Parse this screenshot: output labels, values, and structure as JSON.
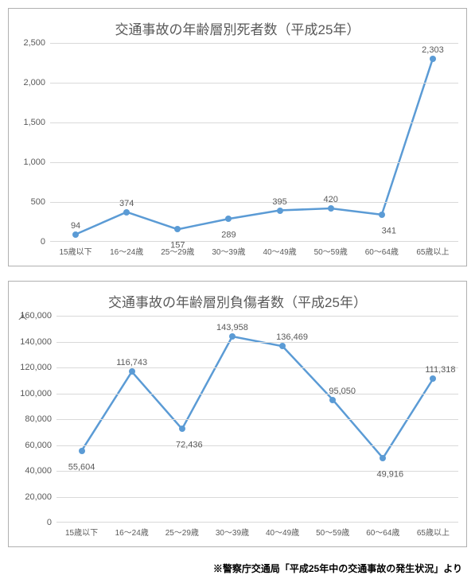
{
  "chart1": {
    "type": "line",
    "title": "交通事故の年齢層別死者数（平成25年）",
    "categories": [
      "15歳以下",
      "16～24歳",
      "25～29歳",
      "30～39歳",
      "40～49歳",
      "50～59歳",
      "60～64歳",
      "65歳以上"
    ],
    "values": [
      94,
      374,
      157,
      289,
      395,
      420,
      341,
      2303
    ],
    "value_labels": [
      "94",
      "374",
      "157",
      "289",
      "395",
      "420",
      "341",
      "2,303"
    ],
    "ylim": [
      0,
      2500
    ],
    "ytick_step": 500,
    "ytick_labels": [
      "0",
      "500",
      "1,000",
      "1,500",
      "2,000",
      "2,500"
    ],
    "line_color": "#5b9bd5",
    "marker_color": "#5b9bd5",
    "line_width": 2.5,
    "marker_size": 8,
    "grid_color": "#d9d9d9",
    "background_color": "#ffffff",
    "title_fontsize": 17,
    "tick_fontsize": 11,
    "label_fontsize": 11,
    "label_offsets": [
      [
        0,
        -1.4
      ],
      [
        0,
        -1.4
      ],
      [
        0,
        1.2
      ],
      [
        0,
        1.2
      ],
      [
        0,
        -1.4
      ],
      [
        0,
        -1.4
      ],
      [
        0.3,
        1.2
      ],
      [
        0,
        -1.4
      ]
    ]
  },
  "chart2": {
    "type": "line",
    "title": "交通事故の年齢層別負傷者数（平成25年）",
    "y_axis_label": "人",
    "categories": [
      "15歳以下",
      "16～24歳",
      "25～29歳",
      "30～39歳",
      "40～49歳",
      "50～59歳",
      "60～64歳",
      "65歳以上"
    ],
    "values": [
      55604,
      116743,
      72436,
      143958,
      136469,
      95050,
      49916,
      111318
    ],
    "value_labels": [
      "55,604",
      "116,743",
      "72,436",
      "143,958",
      "136,469",
      "95,050",
      "49,916",
      "111,318"
    ],
    "ylim": [
      0,
      160000
    ],
    "ytick_step": 20000,
    "ytick_labels": [
      "0",
      "20,000",
      "40,000",
      "60,000",
      "80,000",
      "100,000",
      "120,000",
      "140,000",
      "160,000"
    ],
    "line_color": "#5b9bd5",
    "marker_color": "#5b9bd5",
    "line_width": 2.5,
    "marker_size": 8,
    "grid_color": "#d9d9d9",
    "background_color": "#ffffff",
    "title_fontsize": 17,
    "tick_fontsize": 11,
    "label_fontsize": 11,
    "label_offsets": [
      [
        0,
        1.2
      ],
      [
        0,
        -1.4
      ],
      [
        0.3,
        1.2
      ],
      [
        0,
        -1.4
      ],
      [
        0.4,
        -1.4
      ],
      [
        0.4,
        -1.4
      ],
      [
        0.3,
        1.2
      ],
      [
        0.3,
        -1.4
      ]
    ]
  },
  "source_note": "※警察庁交通局「平成25年中の交通事故の発生状況」より"
}
